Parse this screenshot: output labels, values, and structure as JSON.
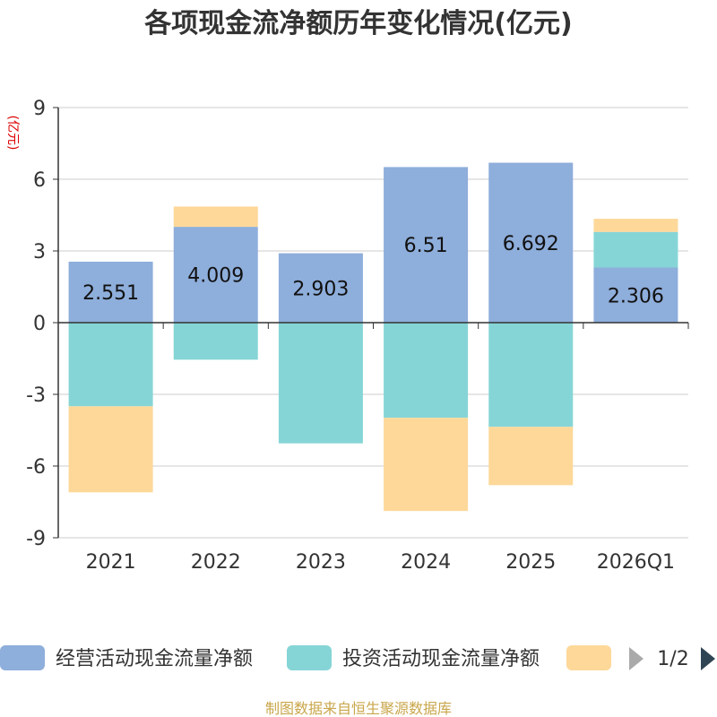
{
  "chart_data": {
    "type": "bar",
    "stacked": true,
    "title": "各项现金流净额历年变化情况(亿元)",
    "ylabel": "(亿元)",
    "ylim": [
      -9,
      9
    ],
    "yticks": [
      9,
      6,
      3,
      0,
      -3,
      -6,
      -9
    ],
    "categories": [
      "2021",
      "2022",
      "2023",
      "2024",
      "2025",
      "2026Q1"
    ],
    "series": [
      {
        "name": "经营活动现金流量净额",
        "color": "#8eaedb",
        "values": [
          2.551,
          4.009,
          2.903,
          6.51,
          6.692,
          2.306
        ],
        "labels": [
          "2.551",
          "4.009",
          "2.903",
          "6.51",
          "6.692",
          "2.306"
        ]
      },
      {
        "name": "投资活动现金流量净额",
        "color": "#86d5d6",
        "values": [
          -3.5,
          -1.55,
          -5.05,
          -3.98,
          -4.36,
          1.49
        ]
      },
      {
        "name": "",
        "color": "#fdd899",
        "values": [
          -3.6,
          0.85,
          0,
          -3.9,
          -2.44,
          0.55
        ]
      }
    ],
    "legend_position": "bottom"
  },
  "legend": {
    "page": "1/2"
  },
  "source": "制图数据来自恒生聚源数据库"
}
